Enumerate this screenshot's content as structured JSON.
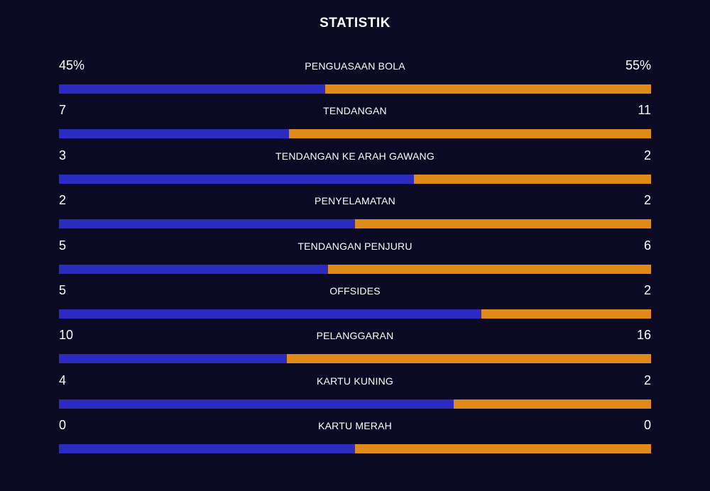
{
  "title": "STATISTIK",
  "colors": {
    "background": "#0b0a24",
    "home": "#2b2bc2",
    "away": "#e08a1a"
  },
  "stats": [
    {
      "label": "PENGUASAAN BOLA",
      "home": "45%",
      "away": "55%",
      "home_share": 0.45
    },
    {
      "label": "TENDANGAN",
      "home": "7",
      "away": "11",
      "home_share": 0.389
    },
    {
      "label": "TENDANGAN KE ARAH GAWANG",
      "home": "3",
      "away": "2",
      "home_share": 0.6
    },
    {
      "label": "PENYELAMATAN",
      "home": "2",
      "away": "2",
      "home_share": 0.5
    },
    {
      "label": "TENDANGAN PENJURU",
      "home": "5",
      "away": "6",
      "home_share": 0.455
    },
    {
      "label": "OFFSIDES",
      "home": "5",
      "away": "2",
      "home_share": 0.714
    },
    {
      "label": "PELANGGARAN",
      "home": "10",
      "away": "16",
      "home_share": 0.385
    },
    {
      "label": "KARTU KUNING",
      "home": "4",
      "away": "2",
      "home_share": 0.667
    },
    {
      "label": "KARTU MERAH",
      "home": "0",
      "away": "0",
      "home_share": 0.5
    }
  ]
}
